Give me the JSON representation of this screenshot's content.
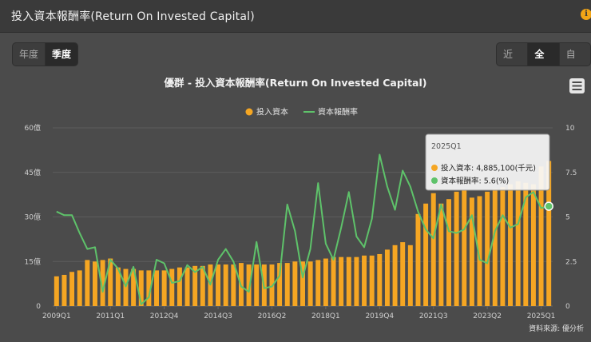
{
  "header": {
    "title": "投入資本報酬率(Return On Invested Capital)"
  },
  "period_toggle": {
    "options": [
      {
        "label": "年度",
        "active": false
      },
      {
        "label": "季度",
        "active": true
      }
    ]
  },
  "range_toggle": {
    "options": [
      {
        "label": "近期",
        "active": false
      },
      {
        "label": "全部",
        "active": true
      },
      {
        "label": "自訂",
        "active": false
      }
    ]
  },
  "chart_data": {
    "type": "bar",
    "title": "優群 - 投入資本報酬率(Return On Invested Capital)",
    "legend": [
      {
        "name": "投入資本",
        "color": "#f5a623",
        "shape": "circle"
      },
      {
        "name": "資本報酬率",
        "color": "#5ec26a",
        "shape": "line"
      }
    ],
    "legend_position": "top-center",
    "x_tick_labels": [
      "2009Q1",
      "2011Q1",
      "2012Q4",
      "2014Q3",
      "2016Q2",
      "2018Q1",
      "2019Q4",
      "2021Q3",
      "2023Q2",
      "2025Q1"
    ],
    "y_left": {
      "ticks": [
        "0",
        "15億",
        "30億",
        "45億",
        "60億"
      ],
      "range": [
        0,
        60
      ],
      "unit": "億"
    },
    "y_right": {
      "ticks": [
        "0",
        "2.5",
        "5",
        "7.5",
        "10"
      ],
      "range": [
        0,
        10
      ]
    },
    "grid": true,
    "categories": [
      "2009Q1",
      "2009Q2",
      "2009Q3",
      "2009Q4",
      "2010Q1",
      "2010Q2",
      "2010Q3",
      "2010Q4",
      "2011Q1",
      "2011Q2",
      "2011Q3",
      "2011Q4",
      "2012Q1",
      "2012Q2",
      "2012Q3",
      "2012Q4",
      "2013Q1",
      "2013Q2",
      "2013Q3",
      "2013Q4",
      "2014Q1",
      "2014Q2",
      "2014Q3",
      "2014Q4",
      "2015Q1",
      "2015Q2",
      "2015Q3",
      "2015Q4",
      "2016Q1",
      "2016Q2",
      "2016Q3",
      "2016Q4",
      "2017Q1",
      "2017Q2",
      "2017Q3",
      "2017Q4",
      "2018Q1",
      "2018Q2",
      "2018Q3",
      "2018Q4",
      "2019Q1",
      "2019Q2",
      "2019Q3",
      "2019Q4",
      "2020Q1",
      "2020Q2",
      "2020Q3",
      "2020Q4",
      "2021Q1",
      "2021Q2",
      "2021Q3",
      "2021Q4",
      "2022Q1",
      "2022Q2",
      "2022Q3",
      "2022Q4",
      "2023Q1",
      "2023Q2",
      "2023Q3",
      "2023Q4",
      "2024Q1",
      "2024Q2",
      "2024Q3",
      "2024Q4",
      "2025Q1"
    ],
    "series": [
      {
        "name": "投入資本",
        "axis": "left",
        "color": "#f5a623",
        "values": [
          10,
          10.5,
          11.5,
          12,
          15.5,
          15,
          15.5,
          16,
          13,
          12.5,
          12.5,
          12,
          12,
          12,
          12,
          12.5,
          13,
          13,
          13.5,
          13.5,
          14,
          14,
          14,
          14,
          14.5,
          14,
          14,
          14,
          14,
          14.5,
          14.5,
          15,
          15,
          15,
          15.5,
          16,
          16.5,
          16.5,
          16.5,
          16.5,
          17,
          17,
          17.5,
          19,
          20.5,
          21.5,
          20.5,
          31,
          34.5,
          38,
          34.5,
          36,
          38.5,
          39,
          36.5,
          37,
          38.5,
          39.5,
          40,
          41,
          42,
          41.5,
          41,
          47,
          48.85
        ]
      },
      {
        "name": "資本報酬率",
        "axis": "right",
        "color": "#5ec26a",
        "values": [
          5.3,
          5.1,
          5.1,
          4.1,
          3.2,
          3.3,
          0.8,
          2.6,
          2.1,
          1.1,
          2.2,
          0.1,
          0.5,
          2.6,
          2.4,
          1.3,
          1.4,
          2.3,
          1.9,
          2.2,
          1.2,
          2.6,
          3.2,
          2.5,
          1.1,
          0.8,
          3.6,
          1.0,
          1.1,
          1.7,
          5.7,
          4.2,
          1.6,
          3.2,
          6.9,
          3.5,
          2.6,
          4.4,
          6.4,
          3.9,
          3.3,
          4.9,
          8.5,
          6.7,
          5.4,
          7.6,
          6.7,
          5.3,
          4.3,
          3.8,
          5.7,
          4.2,
          4.1,
          4.3,
          5.1,
          2.6,
          2.4,
          4.2,
          5.1,
          4.4,
          4.6,
          6.1,
          6.4,
          5.5,
          5.6
        ]
      }
    ],
    "tooltip": {
      "title": "2025Q1",
      "rows": [
        {
          "label": "投入資本",
          "value": "4,885,100(千元)"
        },
        {
          "label": "資本報酬率",
          "value": "5.6(%)"
        }
      ]
    },
    "credits": "資料來源: 優分析"
  }
}
